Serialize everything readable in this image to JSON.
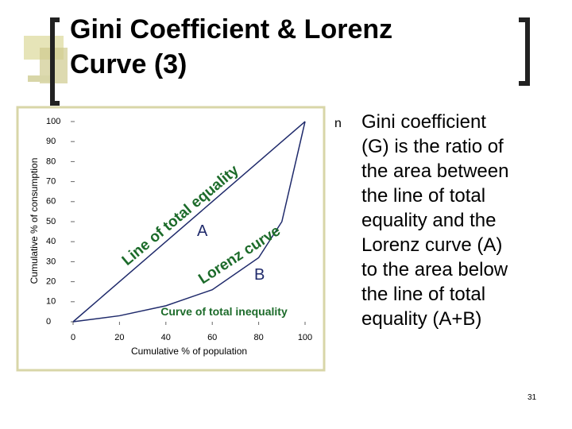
{
  "slide": {
    "title_lines": [
      "Gini Coefficient & Lorenz",
      "Curve (3)"
    ],
    "bullet_marker": "n",
    "bullet_lines": [
      "Gini coefficient",
      "(G) is the ratio of",
      "the area between",
      "the line of total",
      "equality and the",
      "Lorenz curve (A)",
      "to the area below",
      "the line of total",
      "equality (A+B)"
    ],
    "page_number": "31"
  },
  "chart_data": {
    "type": "line",
    "x_label": "Cumulative % of population",
    "y_label": "Cumulative % of consumption",
    "x": [
      0,
      20,
      40,
      60,
      80,
      90,
      100
    ],
    "series": [
      {
        "name": "Line of total equality",
        "color": "#1f2a6b",
        "values": [
          0,
          20,
          40,
          60,
          80,
          90,
          100
        ]
      },
      {
        "name": "Lorenz curve",
        "color": "#1f2a6b",
        "values": [
          0,
          3,
          8,
          16,
          32,
          50,
          100
        ]
      }
    ],
    "annotations": [
      "A",
      "B",
      "Curve of total inequality"
    ],
    "xlim": [
      0,
      100
    ],
    "xticks": [
      0,
      20,
      40,
      60,
      80,
      100
    ],
    "ylim": [
      0,
      100
    ],
    "yticks": [
      0,
      10,
      20,
      30,
      40,
      50,
      60,
      70,
      80,
      90,
      100
    ]
  }
}
